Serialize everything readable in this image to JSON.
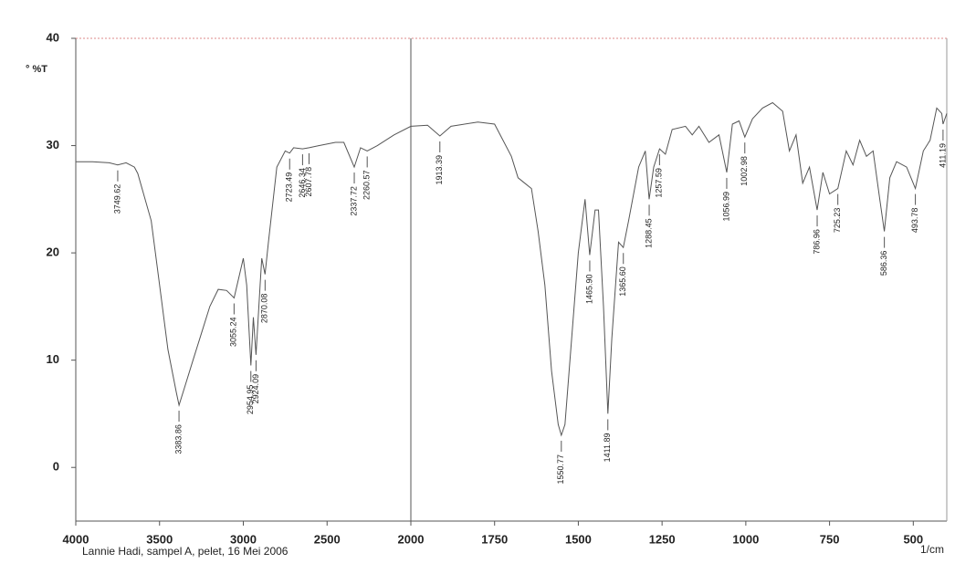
{
  "chart_data": {
    "type": "line",
    "y_label": "° %T",
    "x_label": "1/cm",
    "footer": "Lannie Hadi, sampel A, pelet, 16 Mei 2006",
    "xlim": [
      4000,
      400
    ],
    "ylim": [
      -5,
      40
    ],
    "scale_break": 2000,
    "xticks": [
      4000,
      3500,
      3000,
      2500,
      2000,
      1750,
      1500,
      1250,
      1000,
      750,
      500
    ],
    "yticks": [
      0,
      10,
      20,
      30,
      40
    ],
    "color": "#555555",
    "x": [
      4000,
      3900,
      3800,
      3749.62,
      3700,
      3650,
      3630,
      3550,
      3500,
      3450,
      3400,
      3383.86,
      3350,
      3300,
      3250,
      3200,
      3150,
      3100,
      3055.24,
      3000,
      2980,
      2954.95,
      2940,
      2924.09,
      2900,
      2890,
      2870.08,
      2850,
      2800,
      2750,
      2723.49,
      2700,
      2646.34,
      2607.78,
      2550,
      2450,
      2400,
      2337.72,
      2300,
      2260.57,
      2200,
      2100,
      2000,
      1950,
      1913.39,
      1880,
      1800,
      1750,
      1700,
      1680,
      1660,
      1640,
      1620,
      1600,
      1580,
      1560,
      1550.77,
      1540,
      1520,
      1500,
      1480,
      1465.9,
      1450,
      1440,
      1425,
      1411.89,
      1400,
      1380,
      1365.6,
      1350,
      1320,
      1300,
      1288.45,
      1275,
      1257.59,
      1240,
      1220,
      1180,
      1160,
      1140,
      1110,
      1080,
      1056.99,
      1040,
      1020,
      1002.98,
      980,
      950,
      920,
      890,
      870,
      850,
      830,
      810,
      786.96,
      770,
      750,
      725.23,
      700,
      680,
      660,
      640,
      620,
      600,
      586.36,
      570,
      550,
      520,
      493.78,
      470,
      450,
      430,
      415,
      411.19,
      400
    ],
    "values": [
      28.5,
      28.5,
      28.4,
      28.2,
      28.4,
      28,
      27.4,
      23,
      17,
      11,
      7,
      5.8,
      7.5,
      10,
      12.5,
      15,
      16.6,
      16.5,
      15.8,
      19.5,
      17,
      9.5,
      14,
      10.5,
      17,
      19.5,
      18,
      21,
      28,
      29.5,
      29.3,
      29.8,
      29.7,
      29.8,
      30,
      30.3,
      30.3,
      28,
      29.8,
      29.5,
      30,
      31,
      31.8,
      31.9,
      30.9,
      31.8,
      32.2,
      32,
      29,
      27,
      26.5,
      26,
      22,
      17,
      9,
      4,
      3,
      4,
      12,
      20,
      25,
      19.8,
      24,
      24,
      15,
      5,
      12,
      21,
      20.5,
      23,
      28,
      29.5,
      25,
      28,
      29.7,
      29.2,
      31.5,
      31.8,
      31,
      31.8,
      30.3,
      31,
      27.5,
      32,
      32.3,
      30.8,
      32.5,
      33.5,
      34,
      33.2,
      29.5,
      31,
      26.5,
      28,
      24,
      27.5,
      25.5,
      26,
      29.5,
      28.2,
      30.5,
      29,
      29.5,
      25,
      22,
      27,
      28.5,
      28,
      26,
      29.5,
      30.5,
      33.5,
      33,
      32,
      33
    ],
    "peaks": [
      3749.62,
      3383.86,
      3055.24,
      2954.95,
      2924.09,
      2870.08,
      2723.49,
      2646.34,
      2607.78,
      2337.72,
      2260.57,
      1913.39,
      1550.77,
      {
        "value": 1465.9,
        "label": "1465.90"
      },
      1411.89,
      {
        "value": 1365.6,
        "label": "1365.60"
      },
      1288.45,
      1257.59,
      1056.99,
      1002.98,
      786.96,
      725.23,
      586.36,
      493.78,
      411.19
    ]
  }
}
